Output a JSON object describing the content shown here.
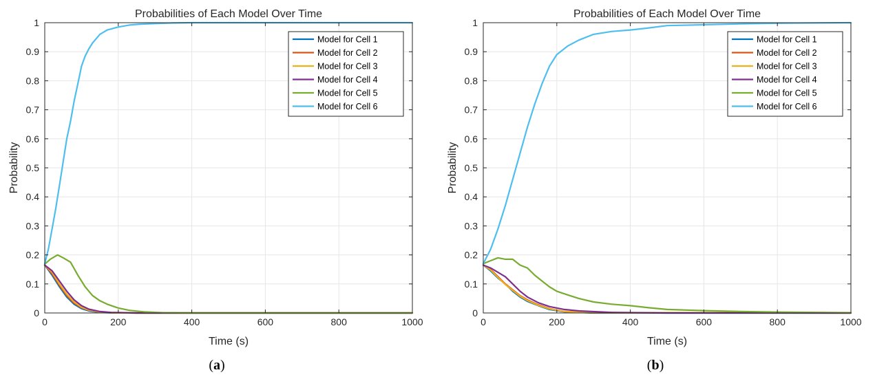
{
  "chart_data": [
    {
      "panel_caption": "a",
      "type": "line",
      "title": "Probabilities of Each Model Over Time",
      "xlabel": "Time (s)",
      "ylabel": "Probability",
      "xlim": [
        0,
        1000
      ],
      "ylim": [
        0,
        1
      ],
      "xticks": [
        0,
        200,
        400,
        600,
        800,
        1000
      ],
      "yticks": [
        0,
        0.1,
        0.2,
        0.3,
        0.4,
        0.5,
        0.6,
        0.7,
        0.8,
        0.9,
        1
      ],
      "grid": true,
      "legend_position": "top-right",
      "series": [
        {
          "name": "Model for Cell 1",
          "color": "#0072BD",
          "x": [
            0,
            20,
            40,
            60,
            80,
            100,
            120,
            150,
            180,
            250,
            400,
            1000
          ],
          "y": [
            0.165,
            0.13,
            0.09,
            0.055,
            0.03,
            0.015,
            0.007,
            0.002,
            0.0005,
            0,
            0,
            0
          ]
        },
        {
          "name": "Model for Cell 2",
          "color": "#D95319",
          "x": [
            0,
            20,
            40,
            60,
            80,
            100,
            120,
            150,
            180,
            250,
            400,
            1000
          ],
          "y": [
            0.165,
            0.135,
            0.095,
            0.06,
            0.034,
            0.018,
            0.009,
            0.003,
            0.001,
            0,
            0,
            0
          ]
        },
        {
          "name": "Model for Cell 3",
          "color": "#EDB120",
          "x": [
            0,
            20,
            40,
            60,
            80,
            100,
            120,
            150,
            180,
            250,
            400,
            1000
          ],
          "y": [
            0.165,
            0.14,
            0.1,
            0.065,
            0.038,
            0.02,
            0.01,
            0.003,
            0.001,
            0,
            0,
            0
          ]
        },
        {
          "name": "Model for Cell 4",
          "color": "#7E2F8E",
          "x": [
            0,
            20,
            40,
            60,
            80,
            100,
            120,
            150,
            180,
            250,
            400,
            1000
          ],
          "y": [
            0.165,
            0.145,
            0.11,
            0.075,
            0.045,
            0.025,
            0.013,
            0.005,
            0.002,
            0,
            0,
            0
          ]
        },
        {
          "name": "Model for Cell 5",
          "color": "#77AC30",
          "x": [
            0,
            15,
            35,
            50,
            70,
            90,
            110,
            130,
            150,
            170,
            200,
            230,
            270,
            320,
            400,
            1000
          ],
          "y": [
            0.168,
            0.185,
            0.2,
            0.19,
            0.175,
            0.13,
            0.09,
            0.06,
            0.042,
            0.03,
            0.017,
            0.009,
            0.004,
            0.001,
            0,
            0
          ]
        },
        {
          "name": "Model for Cell 6",
          "color": "#4DBEEE",
          "x": [
            0,
            10,
            20,
            30,
            40,
            50,
            60,
            70,
            80,
            90,
            100,
            110,
            120,
            130,
            140,
            150,
            170,
            200,
            230,
            260,
            300,
            350,
            400,
            1000
          ],
          "y": [
            0.17,
            0.22,
            0.29,
            0.36,
            0.44,
            0.52,
            0.6,
            0.66,
            0.73,
            0.79,
            0.85,
            0.885,
            0.91,
            0.93,
            0.945,
            0.96,
            0.975,
            0.985,
            0.992,
            0.995,
            0.997,
            0.999,
            1,
            1
          ]
        }
      ]
    },
    {
      "panel_caption": "b",
      "type": "line",
      "title": "Probabilities of Each Model Over Time",
      "xlabel": "Time (s)",
      "ylabel": "Probability",
      "xlim": [
        0,
        1000
      ],
      "ylim": [
        0,
        1
      ],
      "xticks": [
        0,
        200,
        400,
        600,
        800,
        1000
      ],
      "yticks": [
        0,
        0.1,
        0.2,
        0.3,
        0.4,
        0.5,
        0.6,
        0.7,
        0.8,
        0.9,
        1
      ],
      "grid": true,
      "legend_position": "top-right",
      "series": [
        {
          "name": "Model for Cell 1",
          "color": "#0072BD",
          "x": [
            0,
            20,
            40,
            60,
            80,
            100,
            120,
            150,
            180,
            220,
            300,
            1000
          ],
          "y": [
            0.165,
            0.145,
            0.12,
            0.1,
            0.075,
            0.055,
            0.04,
            0.025,
            0.012,
            0.004,
            0,
            0
          ]
        },
        {
          "name": "Model for Cell 2",
          "color": "#D95319",
          "x": [
            0,
            20,
            40,
            60,
            80,
            100,
            120,
            150,
            180,
            220,
            300,
            1000
          ],
          "y": [
            0.165,
            0.15,
            0.125,
            0.1,
            0.08,
            0.06,
            0.045,
            0.028,
            0.015,
            0.005,
            0.001,
            0
          ]
        },
        {
          "name": "Model for Cell 3",
          "color": "#EDB120",
          "x": [
            0,
            20,
            40,
            60,
            80,
            100,
            120,
            150,
            180,
            220,
            300,
            1000
          ],
          "y": [
            0.165,
            0.148,
            0.122,
            0.098,
            0.078,
            0.058,
            0.043,
            0.026,
            0.014,
            0.005,
            0.001,
            0
          ]
        },
        {
          "name": "Model for Cell 4",
          "color": "#7E2F8E",
          "x": [
            0,
            20,
            40,
            60,
            80,
            100,
            120,
            150,
            180,
            220,
            260,
            350,
            500,
            1000
          ],
          "y": [
            0.165,
            0.155,
            0.14,
            0.125,
            0.1,
            0.075,
            0.055,
            0.035,
            0.022,
            0.012,
            0.007,
            0.002,
            0,
            0
          ]
        },
        {
          "name": "Model for Cell 5",
          "color": "#77AC30",
          "x": [
            0,
            20,
            40,
            60,
            80,
            100,
            120,
            140,
            160,
            180,
            200,
            230,
            260,
            300,
            350,
            400,
            450,
            500,
            600,
            700,
            800,
            1000
          ],
          "y": [
            0.17,
            0.18,
            0.19,
            0.185,
            0.185,
            0.165,
            0.155,
            0.13,
            0.11,
            0.09,
            0.075,
            0.062,
            0.05,
            0.038,
            0.03,
            0.025,
            0.018,
            0.012,
            0.008,
            0.005,
            0.003,
            0.001
          ]
        },
        {
          "name": "Model for Cell 6",
          "color": "#4DBEEE",
          "x": [
            0,
            20,
            40,
            60,
            80,
            100,
            120,
            140,
            160,
            180,
            200,
            230,
            260,
            300,
            350,
            400,
            450,
            500,
            600,
            700,
            800,
            1000
          ],
          "y": [
            0.17,
            0.22,
            0.29,
            0.37,
            0.46,
            0.55,
            0.64,
            0.72,
            0.79,
            0.85,
            0.89,
            0.92,
            0.94,
            0.96,
            0.97,
            0.975,
            0.982,
            0.99,
            0.993,
            0.996,
            0.998,
            1
          ]
        }
      ]
    }
  ]
}
